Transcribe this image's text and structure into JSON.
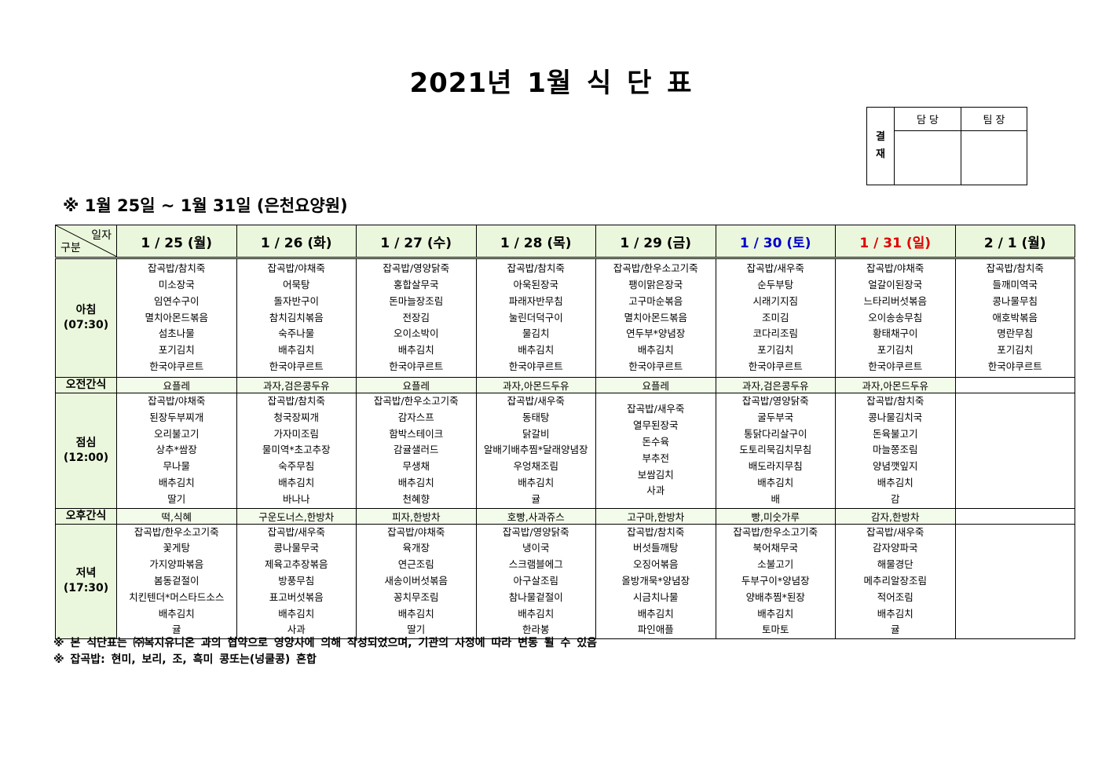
{
  "title": "2021년 1월 식 단 표",
  "approval": {
    "side_label": "결\n재",
    "columns": [
      "담 당",
      "팀 장"
    ]
  },
  "subtitle": "※ 1월 25일 ~ 1월 31일 (은천요양원)",
  "table": {
    "corner_top": "일자",
    "corner_bottom": "구분",
    "meal_labels": {
      "breakfast": "아침\n(07:30)",
      "am_snack": "오전간식",
      "lunch": "점심\n(12:00)",
      "pm_snack": "오후간식",
      "dinner": "저녁\n(17:30)"
    },
    "header_bg": "#ebf7dc",
    "days": [
      {
        "label": "1 / 25 (월)",
        "color": "#000000",
        "breakfast": [
          "잡곡밥/참치죽",
          "미소장국",
          "임연수구이",
          "멸치아몬드볶음",
          "섬초나물",
          "포기김치",
          "한국야쿠르트"
        ],
        "am_snack": "요플레",
        "lunch": [
          "잡곡밥/야채죽",
          "된장두부찌개",
          "오리불고기",
          "상추*쌈장",
          "무나물",
          "배추김치",
          "딸기"
        ],
        "pm_snack": "떡,식혜",
        "dinner": [
          "잡곡밥/한우소고기죽",
          "꽃게탕",
          "가지양파볶음",
          "봄동겉절이",
          "치킨텐더*머스타드소스",
          "배추김치",
          "귤"
        ]
      },
      {
        "label": "1 / 26 (화)",
        "color": "#000000",
        "breakfast": [
          "잡곡밥/야채죽",
          "어묵탕",
          "돌자반구이",
          "참치김치볶음",
          "숙주나물",
          "배추김치",
          "한국야쿠르트"
        ],
        "am_snack": "과자,검은콩두유",
        "lunch": [
          "잡곡밥/참치죽",
          "청국장찌개",
          "가자미조림",
          "물미역*초고추장",
          "숙주무침",
          "배추김치",
          "바나나"
        ],
        "pm_snack": "구운도너스,한방차",
        "dinner": [
          "잡곡밥/새우죽",
          "콩나물무국",
          "제육고추장볶음",
          "방풍무침",
          "표고버섯볶음",
          "배추김치",
          "사과"
        ]
      },
      {
        "label": "1 / 27 (수)",
        "color": "#000000",
        "breakfast": [
          "잡곡밥/영양닭죽",
          "홍합살무국",
          "돈마늘장조림",
          "전장김",
          "오이소박이",
          "배추김치",
          "한국야쿠르트"
        ],
        "am_snack": "요플레",
        "lunch": [
          "잡곡밥/한우소고기죽",
          "감자스프",
          "함박스테이크",
          "감귤샐러드",
          "무생채",
          "배추김치",
          "천혜향"
        ],
        "pm_snack": "피자,한방차",
        "dinner": [
          "잡곡밥/야채죽",
          "육개장",
          "연근조림",
          "새송이버섯볶음",
          "꽁치무조림",
          "배추김치",
          "딸기"
        ]
      },
      {
        "label": "1 / 28 (목)",
        "color": "#000000",
        "breakfast": [
          "잡곡밥/참치죽",
          "아욱된장국",
          "파래자반무침",
          "눌린더덕구이",
          "물김치",
          "배추김치",
          "한국야쿠르트"
        ],
        "am_snack": "과자,아몬드두유",
        "lunch": [
          "잡곡밥/새우죽",
          "동태탕",
          "닭갈비",
          "알배기배추찜*달래양념장",
          "우엉채조림",
          "배추김치",
          "귤"
        ],
        "pm_snack": "호빵,사과쥬스",
        "dinner": [
          "잡곡밥/영양닭죽",
          "냉이국",
          "스크램블에그",
          "아구살조림",
          "참나물겉절이",
          "배추김치",
          "한라봉"
        ]
      },
      {
        "label": "1 / 29 (금)",
        "color": "#000000",
        "breakfast": [
          "잡곡밥/한우소고기죽",
          "팽이맑은장국",
          "고구마순볶음",
          "멸치아몬드볶음",
          "연두부*양념장",
          "배추김치",
          "한국야쿠르트"
        ],
        "am_snack": "요플레",
        "lunch": [
          "잡곡밥/새우죽",
          "열무된장국",
          "돈수육",
          "부추전",
          "보쌈김치",
          "사과"
        ],
        "pm_snack": "고구마,한방차",
        "dinner": [
          "잡곡밥/참치죽",
          "버섯들깨탕",
          "오징어볶음",
          "올방개묵*양념장",
          "시금치나물",
          "배추김치",
          "파인애플"
        ]
      },
      {
        "label": "1 / 30 (토)",
        "color": "#0000cc",
        "breakfast": [
          "잡곡밥/새우죽",
          "순두부탕",
          "시래기지짐",
          "조미김",
          "코다리조림",
          "포기김치",
          "한국야쿠르트"
        ],
        "am_snack": "과자,검은콩두유",
        "lunch": [
          "잡곡밥/영양닭죽",
          "굴두부국",
          "통닭다리살구이",
          "도토리묵김치무침",
          "배도라지무침",
          "배추김치",
          "배"
        ],
        "pm_snack": "빵,미숫가루",
        "dinner": [
          "잡곡밥/한우소고기죽",
          "북어채무국",
          "소불고기",
          "두부구이*양념장",
          "양배추찜*된장",
          "배추김치",
          "토마토"
        ]
      },
      {
        "label": "1 / 31 (일)",
        "color": "#e00000",
        "breakfast": [
          "잡곡밥/야채죽",
          "얼갈이된장국",
          "느타리버섯볶음",
          "오이송송무침",
          "황태채구이",
          "포기김치",
          "한국야쿠르트"
        ],
        "am_snack": "과자,아몬드두유",
        "lunch": [
          "잡곡밥/참치죽",
          "콩나물김치국",
          "돈육불고기",
          "마늘쫑조림",
          "양념깻잎지",
          "배추김치",
          "감"
        ],
        "pm_snack": "감자,한방차",
        "dinner": [
          "잡곡밥/새우죽",
          "감자양파국",
          "해물경단",
          "메추리알장조림",
          "적어조림",
          "배추김치",
          "귤"
        ]
      },
      {
        "label": "2 / 1 (월)",
        "color": "#000000",
        "breakfast": [
          "잡곡밥/참치죽",
          "들깨미역국",
          "콩나물무침",
          "애호박볶음",
          "명란무침",
          "포기김치",
          "한국야쿠르트"
        ],
        "am_snack": "",
        "lunch": [],
        "pm_snack": "",
        "dinner": []
      }
    ]
  },
  "notes": [
    "※ 본 식단표는 ㈜복지유니온 과의 협약으로 영양사에 의해 작성되었으며, 기관의 사정에 따라 변동 될 수 있음",
    "※ 잡곡밥: 현미, 보리, 조, 흑미 콩또는(넝쿨콩) 혼합"
  ]
}
